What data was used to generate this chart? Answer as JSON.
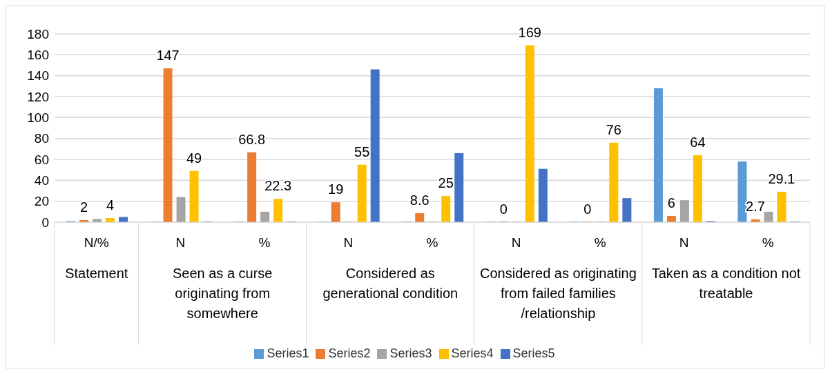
{
  "chart_data": {
    "type": "bar",
    "categories": [
      "N/%",
      "N",
      "%",
      "N",
      "%",
      "N",
      "%",
      "N",
      "%"
    ],
    "annotations": [
      "Statement",
      "Seen as a curse originating from somewhere",
      "Considered as generational condition",
      "Considered as originating from failed families /relationship",
      "Taken as a condition not treatable"
    ],
    "series": [
      {
        "name": "Series1",
        "color": "#5b9bd5",
        "values": [
          1,
          0,
          0,
          0,
          0,
          0,
          0,
          128,
          58
        ]
      },
      {
        "name": "Series2",
        "color": "#ed7d31",
        "values": [
          2,
          147,
          66.8,
          19,
          8.6,
          0,
          0,
          6,
          2.7
        ],
        "value_labels": [
          "2",
          "147",
          "66.8",
          "19",
          "8.6",
          "0",
          "0",
          "6",
          "2.7"
        ]
      },
      {
        "name": "Series3",
        "color": "#a5a5a5",
        "values": [
          3,
          24,
          10,
          0,
          0,
          0,
          0,
          21,
          10
        ]
      },
      {
        "name": "Series4",
        "color": "#ffc000",
        "values": [
          4,
          49,
          22.3,
          55,
          25,
          169,
          76,
          64,
          29.1
        ],
        "value_labels": [
          "4",
          "49",
          "22.3",
          "55",
          "25",
          "169",
          "76",
          "64",
          "29.1"
        ]
      },
      {
        "name": "Series5",
        "color": "#4472c4",
        "values": [
          5,
          0,
          0,
          146,
          66,
          51,
          23,
          1,
          0
        ]
      }
    ],
    "ylim": [
      0,
      180
    ],
    "yticks": [
      0,
      20,
      40,
      60,
      80,
      100,
      120,
      140,
      160,
      180
    ],
    "grid": "y",
    "legend": "bottom"
  }
}
